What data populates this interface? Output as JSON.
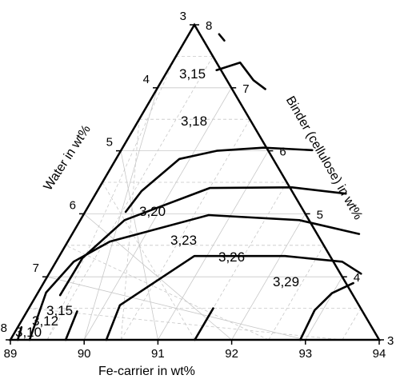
{
  "chart_data": {
    "type": "ternary_contour",
    "title": "",
    "axes": {
      "bottom": {
        "label": "Fe-carrier in wt%",
        "ticks": [
          "89",
          "90",
          "91",
          "92",
          "93",
          "94"
        ]
      },
      "right": {
        "label": "Binder (cellulose) in wt%",
        "ticks": [
          "3",
          "4",
          "5",
          "6",
          "7",
          "8"
        ]
      },
      "left": {
        "label": "Water in wt%",
        "ticks": [
          "8",
          "7",
          "6",
          "5",
          "4",
          "3"
        ]
      }
    },
    "grid": true,
    "contour_labels": [
      "3,10",
      "3,12",
      "3,15",
      "3,15",
      "3,18",
      "3,20",
      "3,23",
      "3,26",
      "3,29"
    ],
    "contours": [
      {
        "value": "3,15",
        "points": [
          [
            89.53,
            7.75
          ],
          [
            89.41,
            7.85
          ]
        ]
      },
      {
        "value": "3,18",
        "points": [
          [
            89.66,
            7.28
          ],
          [
            89.92,
            7.4
          ],
          [
            90.24,
            7.12
          ],
          [
            90.47,
            6.98
          ]
        ]
      },
      {
        "value": "3,20",
        "points": [
          [
            89.55,
            5.03
          ],
          [
            89.6,
            5.36
          ],
          [
            89.86,
            5.87
          ],
          [
            90.3,
            6.0
          ],
          [
            90.91,
            6.05
          ],
          [
            91.59,
            6.01
          ]
        ]
      },
      {
        "value": "3,23",
        "points": [
          [
            89.32,
            3.71
          ],
          [
            89.33,
            4.3
          ],
          [
            89.6,
            4.9
          ],
          [
            90.5,
            5.41
          ],
          [
            91.61,
            5.42
          ],
          [
            92.39,
            5.32
          ]
        ]
      },
      {
        "value": "3,26",
        "points": [
          [
            89.26,
            3.0
          ],
          [
            89.11,
            3.75
          ],
          [
            89.24,
            4.24
          ],
          [
            89.57,
            4.56
          ],
          [
            90.7,
            4.98
          ],
          [
            91.97,
            4.9
          ],
          [
            92.89,
            4.68
          ]
        ]
      },
      {
        "value": "3,29",
        "points": [
          [
            90.3,
            3.0
          ],
          [
            90.21,
            3.55
          ],
          [
            90.83,
            4.33
          ],
          [
            92.06,
            4.33
          ],
          [
            92.88,
            4.24
          ],
          [
            93.23,
            4.05
          ]
        ]
      },
      {
        "value": "3,29",
        "points": [
          [
            92.93,
            3.0
          ],
          [
            92.89,
            3.47
          ],
          [
            92.99,
            3.74
          ],
          [
            93.2,
            3.9
          ]
        ]
      },
      {
        "value": "3,23",
        "points": [
          [
            91.5,
            3.0
          ],
          [
            91.5,
            3.5
          ]
        ]
      },
      {
        "value": "3,18",
        "points": [
          [
            89.75,
            3.0
          ],
          [
            89.68,
            3.45
          ]
        ]
      },
      {
        "value": "3,10",
        "points": [
          [
            89.1,
            3.0
          ],
          [
            89.05,
            3.2
          ]
        ]
      }
    ]
  }
}
